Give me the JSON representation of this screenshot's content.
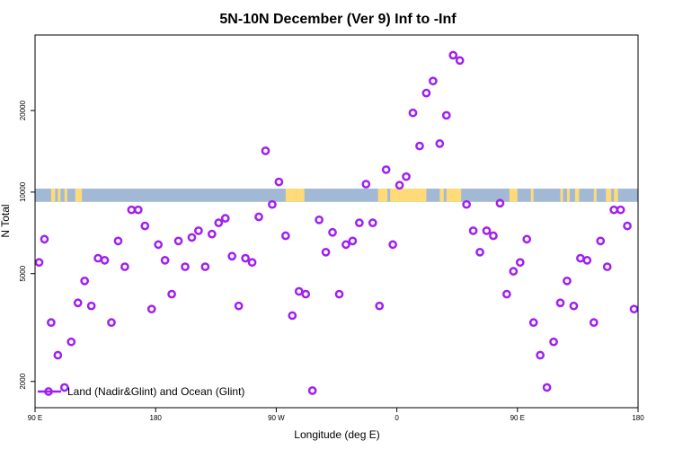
{
  "chart_data": {
    "type": "scatter",
    "title": "5N-10N December (Ver 9)   Inf to -Inf",
    "xlabel": "Longitude (deg E)",
    "ylabel": "N Total",
    "x_ticks": [
      {
        "value": 90,
        "label": "90 E"
      },
      {
        "value": 180,
        "label": "180"
      },
      {
        "value": 270,
        "label": "90 W"
      },
      {
        "value": 360,
        "label": "0"
      },
      {
        "value": 450,
        "label": "90 E"
      },
      {
        "value": 540,
        "label": "180"
      }
    ],
    "y_ticks": [
      2000,
      5000,
      10000,
      20000
    ],
    "xlim": [
      90,
      540
    ],
    "ylim": [
      1600,
      38000
    ],
    "log_y": true,
    "series": [
      {
        "name": "Land (Nadir&Glint) and Ocean (Glint)",
        "color": "#a020f0",
        "x": [
          93,
          97,
          102,
          107,
          112,
          117,
          122,
          127,
          132,
          137,
          142,
          147,
          152,
          157,
          162,
          167,
          172,
          177,
          182,
          187,
          192,
          197,
          202,
          207,
          212,
          217,
          222,
          227,
          232,
          237,
          242,
          247,
          252,
          257,
          262,
          267,
          272,
          277,
          282,
          287,
          292,
          297,
          302,
          307,
          312,
          317,
          322,
          327,
          332,
          337,
          342,
          347,
          352,
          357,
          362,
          367,
          372,
          377,
          382,
          387,
          392,
          397,
          402,
          407,
          412,
          417,
          422,
          427,
          432,
          437,
          442,
          447,
          452,
          457,
          462,
          467,
          472,
          477,
          482,
          487,
          492,
          497,
          502,
          507,
          512,
          517,
          522,
          527,
          532,
          537
        ],
        "y": [
          5500,
          6700,
          3300,
          2500,
          1900,
          2800,
          3900,
          4700,
          3800,
          5700,
          5600,
          3300,
          6600,
          5300,
          8600,
          8600,
          7500,
          3700,
          6400,
          5600,
          4200,
          6600,
          5300,
          6800,
          7200,
          5300,
          7000,
          7700,
          8000,
          5800,
          3800,
          5700,
          5500,
          8100,
          14200,
          9000,
          10900,
          6900,
          3500,
          4300,
          4200,
          1850,
          7900,
          6000,
          7100,
          4200,
          6400,
          6600,
          7700,
          10700,
          7700,
          3800,
          12100,
          6400,
          10600,
          11400,
          19600,
          14800,
          23200,
          25700,
          15100,
          19200,
          32000,
          30600,
          9000,
          7200,
          6000,
          7200,
          6900,
          9100,
          4200,
          5100,
          5500,
          6700,
          3300,
          2500,
          1900,
          2800,
          3900,
          4700,
          3800,
          5700,
          5600,
          3300,
          6600,
          5300,
          8600,
          8600,
          7500,
          3700
        ]
      }
    ],
    "background": {
      "band_ylim": [
        9200,
        10300
      ],
      "band_color": "#a2b9d6",
      "land_color": "#fedb78",
      "land_ranges": [
        [
          102,
          105
        ],
        [
          107,
          109
        ],
        [
          112,
          114
        ],
        [
          120,
          125
        ],
        [
          277,
          285
        ],
        [
          285,
          291
        ],
        [
          346,
          353
        ],
        [
          355,
          362
        ],
        [
          362,
          382
        ],
        [
          392,
          395
        ],
        [
          397,
          408
        ],
        [
          444,
          450
        ],
        [
          460,
          462
        ],
        [
          482,
          484
        ],
        [
          487,
          489
        ],
        [
          493,
          496
        ],
        [
          507,
          509
        ],
        [
          516,
          520
        ],
        [
          522,
          525
        ]
      ]
    },
    "legend": "bottom-left",
    "grid": false
  }
}
